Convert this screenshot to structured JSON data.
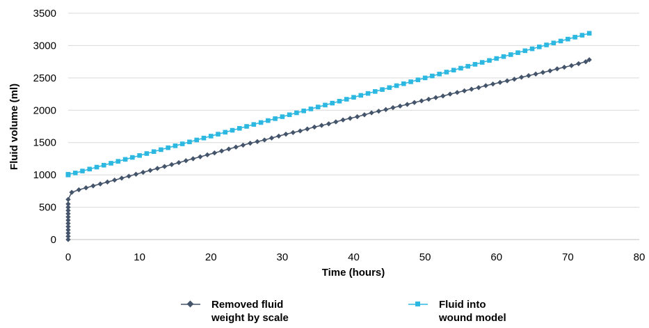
{
  "chart_data": {
    "type": "scatter",
    "title": "",
    "xlabel": "Time (hours)",
    "ylabel": "Fluid volume (ml)",
    "xlim": [
      0,
      80
    ],
    "ylim": [
      0,
      3500
    ],
    "xticks": [
      0,
      10,
      20,
      30,
      40,
      50,
      60,
      70,
      80
    ],
    "yticks": [
      0,
      500,
      1000,
      1500,
      2000,
      2500,
      3000,
      3500
    ],
    "grid": "horizontal",
    "legend_position": "bottom",
    "series": [
      {
        "name": "Removed fluid weight by scale",
        "color": "#44546a",
        "marker": "diamond",
        "x": [
          0,
          0,
          0,
          0,
          0,
          0,
          0,
          0,
          0,
          0,
          0,
          0,
          0,
          0.5,
          1.5,
          2.5,
          3.5,
          4.5,
          5.5,
          6.5,
          7.5,
          8.5,
          9.5,
          10.5,
          11.5,
          12.5,
          13.5,
          14.5,
          15.5,
          16.5,
          17.5,
          18.5,
          19.5,
          20.5,
          21.5,
          22.5,
          23.5,
          24.5,
          25.5,
          26.5,
          27.5,
          28.5,
          29.5,
          30.5,
          31.5,
          32.5,
          33.5,
          34.5,
          35.5,
          36.5,
          37.5,
          38.5,
          39.5,
          40.5,
          41.5,
          42.5,
          43.5,
          44.5,
          45.5,
          46.5,
          47.5,
          48.5,
          49.5,
          50.5,
          51.5,
          52.5,
          53.5,
          54.5,
          55.5,
          56.5,
          57.5,
          58.5,
          59.5,
          60.5,
          61.5,
          62.5,
          63.5,
          64.5,
          65.5,
          66.5,
          67.5,
          68.5,
          69.5,
          70.5,
          71.5,
          72.5,
          73
        ],
        "y": [
          0,
          50,
          100,
          150,
          200,
          250,
          300,
          350,
          400,
          450,
          500,
          550,
          620,
          730,
          770,
          800,
          830,
          860,
          890,
          920,
          950,
          980,
          1010,
          1040,
          1070,
          1100,
          1130,
          1160,
          1190,
          1220,
          1250,
          1280,
          1310,
          1340,
          1370,
          1400,
          1430,
          1460,
          1490,
          1515,
          1540,
          1570,
          1600,
          1630,
          1655,
          1680,
          1710,
          1740,
          1765,
          1790,
          1820,
          1850,
          1875,
          1900,
          1930,
          1960,
          1985,
          2010,
          2040,
          2065,
          2090,
          2120,
          2145,
          2170,
          2195,
          2220,
          2250,
          2275,
          2300,
          2325,
          2350,
          2380,
          2405,
          2430,
          2455,
          2480,
          2510,
          2535,
          2560,
          2585,
          2610,
          2640,
          2665,
          2690,
          2720,
          2750,
          2780
        ]
      },
      {
        "name": "Fluid into wound model",
        "color": "#2cb8e0",
        "marker": "square",
        "x": [
          0,
          0,
          0,
          0,
          0,
          0,
          0,
          0,
          0,
          0,
          1,
          2,
          3,
          4,
          5,
          6,
          7,
          8,
          9,
          10,
          11,
          12,
          13,
          14,
          15,
          16,
          17,
          18,
          19,
          20,
          21,
          22,
          23,
          24,
          25,
          26,
          27,
          28,
          29,
          30,
          31,
          32,
          33,
          34,
          35,
          36,
          37,
          38,
          39,
          40,
          41,
          42,
          43,
          44,
          45,
          46,
          47,
          48,
          49,
          50,
          51,
          52,
          53,
          54,
          55,
          56,
          57,
          58,
          59,
          60,
          61,
          62,
          63,
          64,
          65,
          66,
          67,
          68,
          69,
          70,
          71,
          72,
          73
        ],
        "y": [
          1000,
          1000,
          1000,
          1000,
          1000,
          1000,
          1000,
          1000,
          1000,
          1010,
          1030,
          1060,
          1090,
          1120,
          1150,
          1180,
          1210,
          1240,
          1270,
          1300,
          1330,
          1360,
          1390,
          1420,
          1450,
          1480,
          1510,
          1540,
          1570,
          1600,
          1630,
          1660,
          1690,
          1720,
          1750,
          1780,
          1810,
          1840,
          1870,
          1900,
          1930,
          1960,
          1990,
          2020,
          2050,
          2080,
          2110,
          2140,
          2170,
          2200,
          2230,
          2260,
          2290,
          2320,
          2350,
          2380,
          2410,
          2440,
          2470,
          2500,
          2530,
          2560,
          2590,
          2620,
          2650,
          2680,
          2710,
          2740,
          2770,
          2800,
          2830,
          2860,
          2890,
          2920,
          2950,
          2980,
          3010,
          3040,
          3070,
          3100,
          3130,
          3160,
          3190
        ]
      }
    ]
  },
  "legend": {
    "removed_label_line1": "Removed fluid",
    "removed_label_line2": "weight by scale",
    "into_label_line1": "Fluid into",
    "into_label_line2": "wound model"
  }
}
